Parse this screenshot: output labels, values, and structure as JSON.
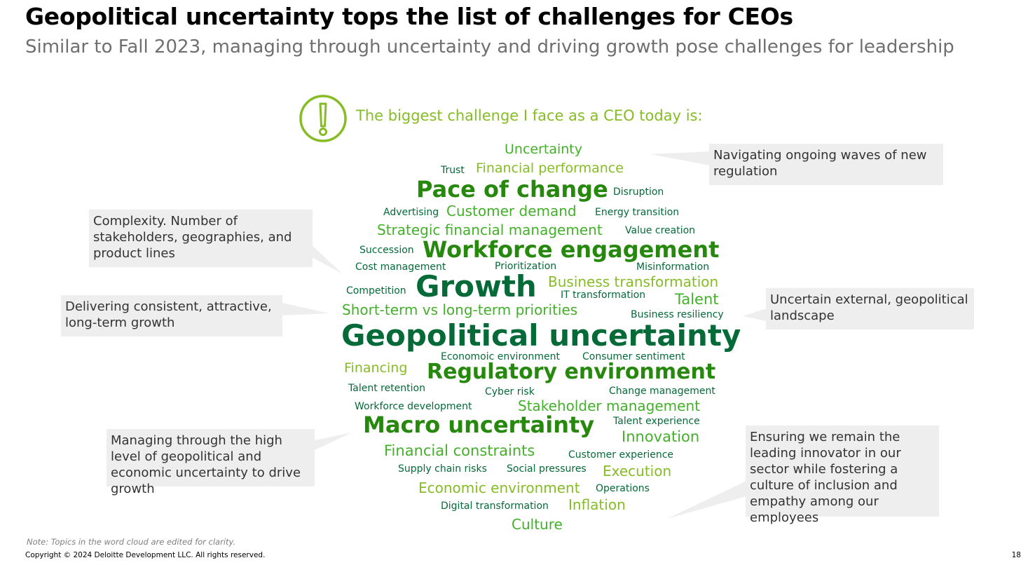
{
  "header": {
    "title": "Geopolitical uncertainty tops the list of challenges for CEOs",
    "subtitle": "Similar to Fall 2023, managing through uncertainty and driving growth pose challenges for leadership"
  },
  "prompt": {
    "icon": "exclamation-icon",
    "text": "The biggest challenge I face as a CEO today is:"
  },
  "word_cloud": [
    "Uncertainty",
    "Trust",
    "Financial performance",
    "Pace of change",
    "Disruption",
    "Advertising",
    "Customer demand",
    "Energy transition",
    "Strategic financial management",
    "Value creation",
    "Succession",
    "Workforce engagement",
    "Cost management",
    "Prioritization",
    "Misinformation",
    "Competition",
    "Growth",
    "Business transformation",
    "IT transformation",
    "Talent",
    "Short-term vs long-term priorities",
    "Business resiliency",
    "Geopolitical uncertainty",
    "Economoic environment",
    "Consumer sentiment",
    "Financing",
    "Regulatory environment",
    "Talent retention",
    "Cyber risk",
    "Change management",
    "Workforce development",
    "Stakeholder management",
    "Macro uncertainty",
    "Talent experience",
    "Innovation",
    "Financial constraints",
    "Customer experience",
    "Supply chain risks",
    "Social pressures",
    "Execution",
    "Economic environment",
    "Operations",
    "Digital transformation",
    "Inflation",
    "Culture"
  ],
  "quotes": [
    "Navigating ongoing waves of new regulation",
    "Complexity. Number of stakeholders, geographies, and product lines",
    "Delivering consistent, attractive, long-term growth",
    "Uncertain external, geopolitical landscape",
    "Managing through the high level of geopolitical and economic uncertainty to drive growth",
    "Ensuring we remain the leading innovator in our sector while fostering a culture of inclusion and empathy among our employees"
  ],
  "footer": {
    "note": "Note: Topics in the word cloud are edited for clarity.",
    "copyright": "Copyright © 2024 Deloitte Development LLC. All rights reserved.",
    "page": "18"
  },
  "colors": {
    "light_green": "#86bc25",
    "mid_green": "#43b02a",
    "dark_green": "#26890d",
    "darkest_green": "#046a38",
    "callout_bg": "#eeeeee"
  }
}
